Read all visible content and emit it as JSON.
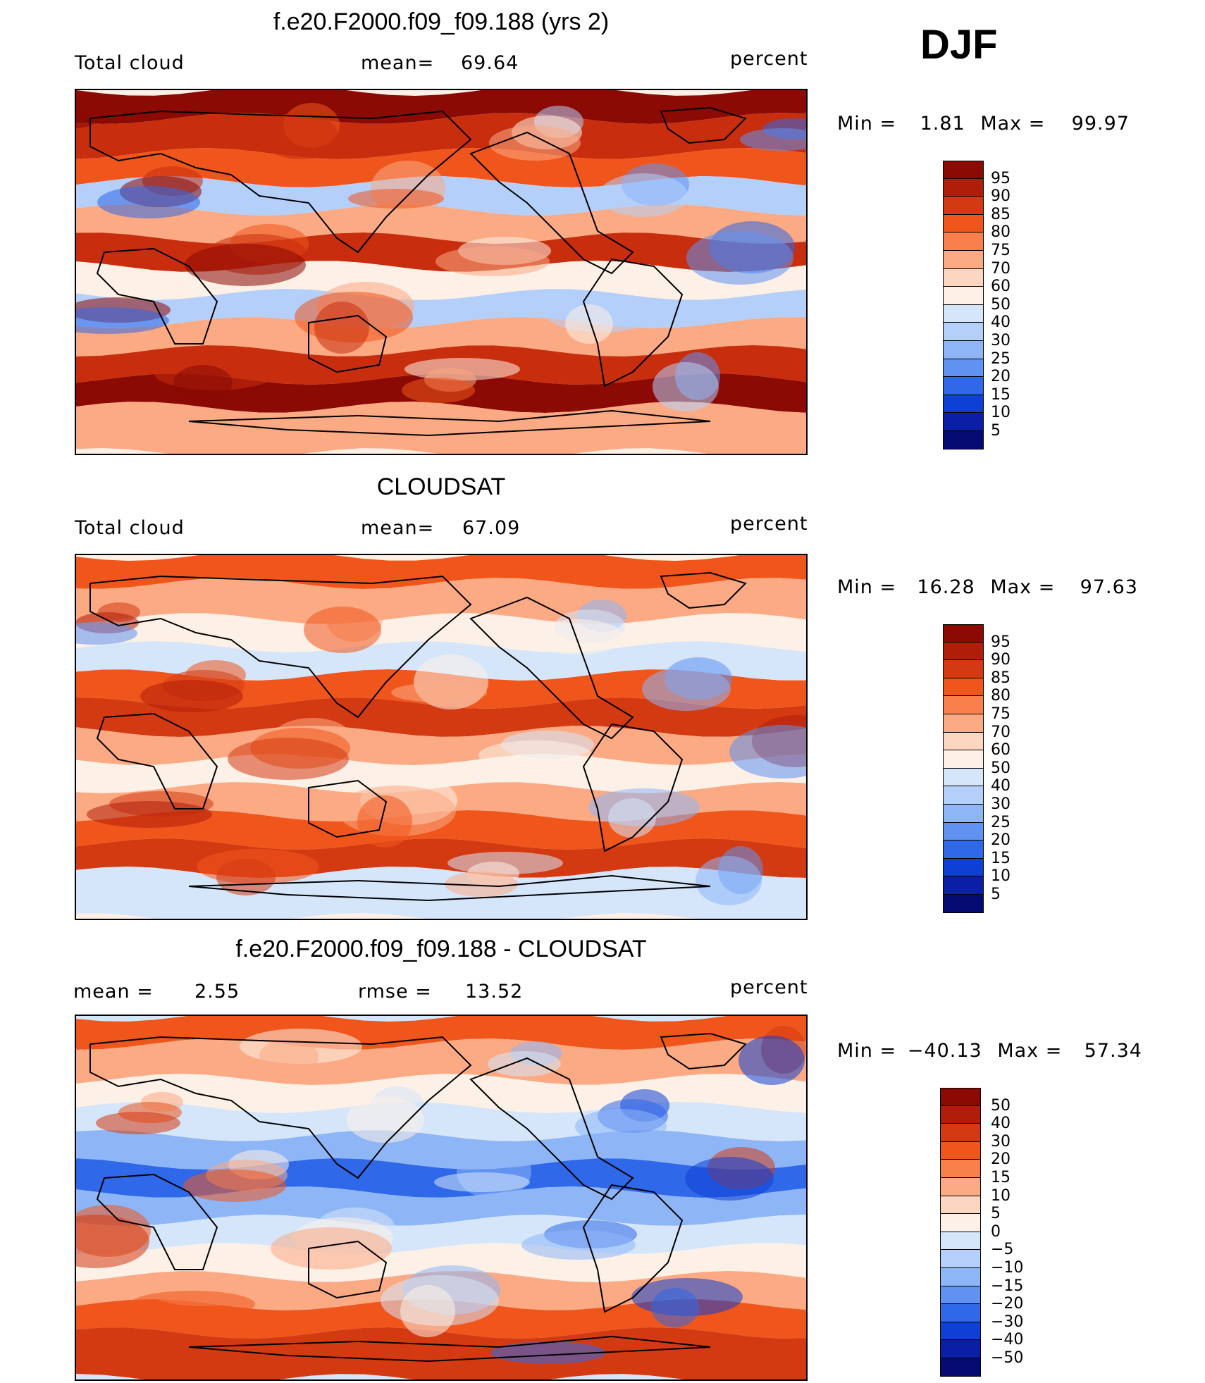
{
  "season": "DJF",
  "panels": [
    {
      "title": "f.e20.F2000.f09_f09.188 (yrs 2)",
      "left_label": "Total cloud",
      "stat1_label": "mean=",
      "stat1_value": "69.64",
      "stat2_label": "",
      "stat2_value": "",
      "units": "percent",
      "min_label": "Min  =",
      "min_value": "1.81",
      "max_label": "Max  =",
      "max_value": "99.97",
      "colorbar": {
        "labels": [
          "95",
          "90",
          "85",
          "80",
          "75",
          "70",
          "60",
          "50",
          "40",
          "30",
          "25",
          "20",
          "15",
          "10",
          "5"
        ],
        "colors": [
          "#8b0a04",
          "#b01e0a",
          "#d43a12",
          "#f0561c",
          "#f9804a",
          "#fbaa84",
          "#fdd6c2",
          "#fdf0e6",
          "#d6e6fa",
          "#b4cffa",
          "#8eb6f7",
          "#5f92f1",
          "#2f68e8",
          "#0f40d6",
          "#0a1ea6",
          "#050b72"
        ]
      },
      "map_colors": [
        "#8b0a04",
        "#c82e0e",
        "#f0561c",
        "#fbaa84",
        "#fdf0e6",
        "#b4cffa",
        "#5f92f1",
        "#2f68e8"
      ]
    },
    {
      "title": "CLOUDSAT",
      "left_label": "Total cloud",
      "stat1_label": "mean=",
      "stat1_value": "67.09",
      "stat2_label": "",
      "stat2_value": "",
      "units": "percent",
      "min_label": "Min  =",
      "min_value": "16.28",
      "max_label": "Max  =",
      "max_value": "97.63",
      "colorbar": {
        "labels": [
          "95",
          "90",
          "85",
          "80",
          "75",
          "70",
          "60",
          "50",
          "40",
          "30",
          "25",
          "20",
          "15",
          "10",
          "5"
        ],
        "colors": [
          "#8b0a04",
          "#b01e0a",
          "#d43a12",
          "#f0561c",
          "#f9804a",
          "#fbaa84",
          "#fdd6c2",
          "#fdf0e6",
          "#d6e6fa",
          "#b4cffa",
          "#8eb6f7",
          "#5f92f1",
          "#2f68e8",
          "#0f40d6",
          "#0a1ea6",
          "#050b72"
        ]
      },
      "map_colors": [
        "#b01e0a",
        "#d43a12",
        "#f0561c",
        "#fbaa84",
        "#fdf0e6",
        "#d6e6fa",
        "#8eb6f7",
        "#5f92f1"
      ]
    },
    {
      "title": "f.e20.F2000.f09_f09.188 - CLOUDSAT",
      "left_label": "mean  =",
      "left_value": "2.55",
      "stat1_label": "rmse  =",
      "stat1_value": "13.52",
      "stat2_label": "",
      "stat2_value": "",
      "units": "percent",
      "min_label": "Min  =",
      "min_value": "−40.13",
      "max_label": "Max  =",
      "max_value": "57.34",
      "colorbar": {
        "labels": [
          "50",
          "40",
          "30",
          "20",
          "15",
          "10",
          "5",
          "0",
          "−5",
          "−10",
          "−15",
          "−20",
          "−30",
          "−40",
          "−50"
        ],
        "colors": [
          "#8b0a04",
          "#b01e0a",
          "#d43a12",
          "#f0561c",
          "#f9804a",
          "#fbaa84",
          "#fdd6c2",
          "#fdf0e6",
          "#d6e6fa",
          "#b4cffa",
          "#8eb6f7",
          "#5f92f1",
          "#2f68e8",
          "#0f40d6",
          "#0a1ea6",
          "#050b72"
        ]
      },
      "map_colors": [
        "#d43a12",
        "#f0561c",
        "#fbaa84",
        "#fdf0e6",
        "#d6e6fa",
        "#8eb6f7",
        "#2f68e8",
        "#0f40d6"
      ]
    }
  ]
}
